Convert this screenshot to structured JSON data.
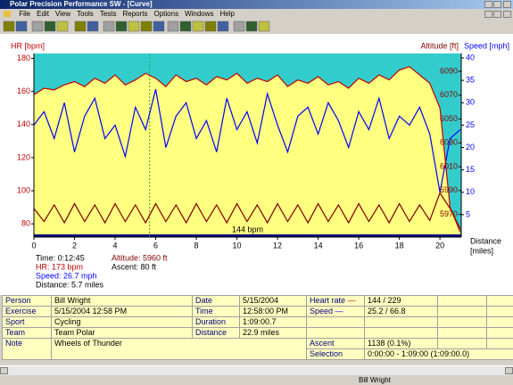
{
  "window": {
    "title": "Polar Precision Performance SW - [Curve]"
  },
  "menu": [
    "File",
    "Edit",
    "View",
    "Tools",
    "Tests",
    "Reports",
    "Options",
    "Windows",
    "Help"
  ],
  "chart": {
    "type": "line",
    "x": [
      0,
      0.5,
      1,
      1.5,
      2,
      2.5,
      3,
      3.5,
      4,
      4.5,
      5,
      5.5,
      6,
      6.5,
      7,
      7.5,
      8,
      8.5,
      9,
      9.5,
      10,
      10.5,
      11,
      11.5,
      12,
      12.5,
      13,
      13.5,
      14,
      14.5,
      15,
      15.5,
      16,
      16.5,
      17,
      17.5,
      18,
      18.5,
      19,
      19.5,
      20,
      20.5,
      21
    ],
    "xlim": [
      0,
      21.05
    ],
    "xticks": [
      0,
      2,
      4,
      6,
      8,
      10,
      12,
      14,
      16,
      18,
      20
    ],
    "xlabel": "Distance",
    "xunit": "[miles]",
    "hr": {
      "label": "HR [bpm]",
      "color": "#c00000",
      "fill": "#ffff80",
      "background": "#33cccc",
      "ylim": [
        72,
        183
      ],
      "yticks": [
        80,
        100,
        120,
        140,
        160,
        180
      ],
      "values": [
        158,
        162,
        161,
        164,
        166,
        163,
        168,
        165,
        170,
        164,
        167,
        171,
        168,
        163,
        170,
        166,
        168,
        164,
        169,
        167,
        171,
        165,
        168,
        166,
        170,
        163,
        167,
        165,
        169,
        164,
        166,
        162,
        168,
        165,
        170,
        167,
        173,
        175,
        170,
        165,
        150,
        90,
        75
      ]
    },
    "speed": {
      "label": "Speed [mph]",
      "color": "#0000ff",
      "ylim": [
        0,
        41
      ],
      "yticks": [
        5,
        10,
        15,
        20,
        25,
        30,
        35,
        40
      ],
      "values": [
        25,
        28,
        22,
        30,
        19,
        27,
        31,
        22,
        25,
        18,
        29,
        24,
        33,
        20,
        27,
        30,
        22,
        26,
        19,
        31,
        24,
        28,
        21,
        32,
        25,
        19,
        27,
        29,
        23,
        30,
        26,
        20,
        28,
        24,
        31,
        22,
        27,
        25,
        29,
        23,
        10,
        22,
        24
      ]
    },
    "altitude": {
      "label": "Altitude [ft]",
      "color": "#800000",
      "ylim": [
        5951,
        6105
      ],
      "yticks": [
        5970,
        5990,
        6010,
        6030,
        6050,
        6070,
        6090
      ],
      "values": [
        5975,
        5964,
        5978,
        5963,
        5979,
        5964,
        5978,
        5963,
        5979,
        5964,
        5978,
        5963,
        5979,
        5964,
        5978,
        5963,
        5979,
        5964,
        5978,
        5963,
        5979,
        5964,
        5978,
        5963,
        5979,
        5964,
        5978,
        5963,
        5979,
        5964,
        5978,
        5963,
        5979,
        5964,
        5978,
        5963,
        5979,
        5964,
        5978,
        5965,
        5988,
        5975,
        5958
      ]
    },
    "annotation": "144 bpm",
    "cursor_x": 5.7
  },
  "readout": {
    "time": "Time: 0:12:45",
    "hr": "HR: 173 bpm",
    "speed": "Speed: 26.7 mph",
    "distance": "Distance: 5.7 miles",
    "altitude": "Altitude: 5960 ft",
    "ascent": "Ascent: 80 ft"
  },
  "table": {
    "rows": [
      [
        "Person",
        "Bill Wright",
        "Date",
        "5/15/2004",
        "Heart rate",
        "144 / 229"
      ],
      [
        "Exercise",
        "5/15/2004 12:58 PM",
        "Time",
        "12:58:00 PM",
        "Speed",
        "25.2 / 66.8"
      ],
      [
        "Sport",
        "Cycling",
        "Duration",
        "1:09:00.7"
      ],
      [
        "Team",
        "Team Polar",
        "Distance",
        "22.9 miles"
      ],
      [
        "Note",
        "Wheels of Thunder",
        "Ascent",
        "1138 (0.1%)"
      ],
      [
        "Selection",
        "0:00:00 - 1:09:00 (1:09:00.0)"
      ]
    ]
  },
  "status": "Bill Wright"
}
